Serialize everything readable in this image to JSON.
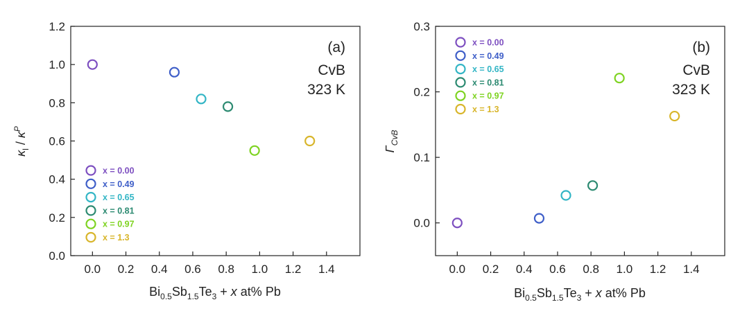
{
  "chart_data": [
    {
      "type": "scatter",
      "panel_label": "(a)",
      "annotation_lines": [
        "CvB",
        "323 K"
      ],
      "xlabel": "Bi0.5Sb1.5Te3 + x at% Pb",
      "xlabel_parts": {
        "a": "Bi",
        "a_sub": "0.5",
        "b": "Sb",
        "b_sub": "1.5",
        "c": "Te",
        "c_sub": "3",
        "d": " + ",
        "e": "x",
        "f": " at% Pb"
      },
      "ylabel_parts": {
        "k1": "κ",
        "k1_sub": "l",
        "slash": " / ",
        "k2": "κ",
        "k2_sup": "P"
      },
      "xlim": [
        -0.13,
        1.6
      ],
      "ylim": [
        0,
        1.2
      ],
      "xticks": [
        "0.0",
        "0.2",
        "0.4",
        "0.6",
        "0.8",
        "1.0",
        "1.2",
        "1.4"
      ],
      "yticks": [
        "0.0",
        "0.2",
        "0.4",
        "0.6",
        "0.8",
        "1.0",
        "1.2"
      ],
      "legend_placement": "lower-left",
      "series": [
        {
          "name": "x = 0.00",
          "x": 0.0,
          "y": 1.0,
          "color": "#7d4fc0"
        },
        {
          "name": "x = 0.49",
          "x": 0.49,
          "y": 0.96,
          "color": "#3e5ec8"
        },
        {
          "name": "x = 0.65",
          "x": 0.65,
          "y": 0.82,
          "color": "#32b5c5"
        },
        {
          "name": "x = 0.81",
          "x": 0.81,
          "y": 0.78,
          "color": "#2c8a71"
        },
        {
          "name": "x = 0.97",
          "x": 0.97,
          "y": 0.55,
          "color": "#7ed321"
        },
        {
          "name": "x = 1.3",
          "x": 1.3,
          "y": 0.6,
          "color": "#d8b52a"
        }
      ]
    },
    {
      "type": "scatter",
      "panel_label": "(b)",
      "annotation_lines": [
        "CvB",
        "323 K"
      ],
      "xlabel": "Bi0.5Sb1.5Te3 + x at% Pb",
      "xlabel_parts": {
        "a": "Bi",
        "a_sub": "0.5",
        "b": "Sb",
        "b_sub": "1.5",
        "c": "Te",
        "c_sub": "3",
        "d": " + ",
        "e": "x",
        "f": " at% Pb"
      },
      "ylabel_parts": {
        "g": "Γ",
        "g_sub": "CvB"
      },
      "xlim": [
        -0.13,
        1.6
      ],
      "ylim": [
        -0.05,
        0.3
      ],
      "xticks": [
        "0.0",
        "0.2",
        "0.4",
        "0.6",
        "0.8",
        "1.0",
        "1.2",
        "1.4"
      ],
      "yticks": [
        "0.0",
        "0.1",
        "0.2",
        "0.3"
      ],
      "legend_placement": "top-left",
      "series": [
        {
          "name": "x = 0.00",
          "x": 0.0,
          "y": 0.0,
          "color": "#7d4fc0"
        },
        {
          "name": "x = 0.49",
          "x": 0.49,
          "y": 0.007,
          "color": "#3e5ec8"
        },
        {
          "name": "x = 0.65",
          "x": 0.65,
          "y": 0.042,
          "color": "#32b5c5"
        },
        {
          "name": "x = 0.81",
          "x": 0.81,
          "y": 0.057,
          "color": "#2c8a71"
        },
        {
          "name": "x = 0.97",
          "x": 0.97,
          "y": 0.221,
          "color": "#7ed321"
        },
        {
          "name": "x = 1.3",
          "x": 1.3,
          "y": 0.163,
          "color": "#d8b52a"
        }
      ]
    }
  ]
}
